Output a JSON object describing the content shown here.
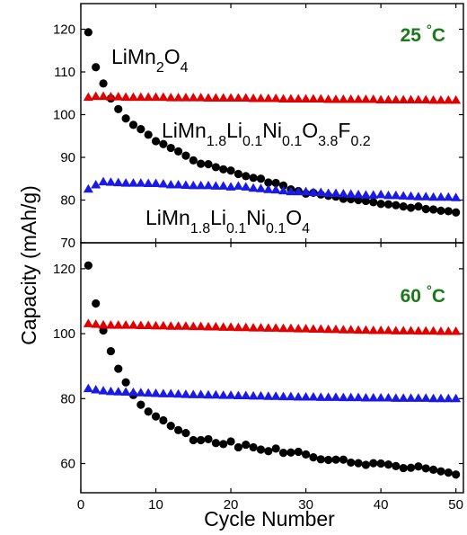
{
  "chart_data": {
    "type": "scatter",
    "xlabel": "Cycle Number",
    "ylabel": "Capacity (mAh/g)",
    "xlim": [
      0,
      51
    ],
    "x_ticks": [
      0,
      10,
      20,
      30,
      40,
      50
    ],
    "x_tick_labels": [
      "0",
      "10",
      "20",
      "30",
      "40",
      "50"
    ],
    "grid": false,
    "legend": "none",
    "colors": {
      "black": "#000000",
      "red": "#e00000",
      "blue": "#1a1ae6",
      "green": "#1a7a1a"
    },
    "panels": [
      {
        "id": "top",
        "temperature_label": "25 °C",
        "ylim": [
          70,
          126
        ],
        "y_ticks": [
          70,
          80,
          90,
          100,
          110,
          120
        ],
        "y_tick_labels": [
          "70",
          "80",
          "90",
          "100",
          "110",
          "120"
        ],
        "annotations": [
          {
            "segments": [
              {
                "t": "LiMn"
              },
              {
                "t": "2",
                "sub": true
              },
              {
                "t": "O"
              },
              {
                "t": "4",
                "sub": true
              }
            ],
            "color": "black"
          },
          {
            "segments": [
              {
                "t": "LiMn"
              },
              {
                "t": "1.8",
                "sub": true
              },
              {
                "t": "Li"
              },
              {
                "t": "0.1",
                "sub": true
              },
              {
                "t": "Ni"
              },
              {
                "t": "0.1",
                "sub": true
              },
              {
                "t": "O"
              },
              {
                "t": "3.8",
                "sub": true
              },
              {
                "t": "F"
              },
              {
                "t": "0.2",
                "sub": true
              }
            ],
            "color": "red"
          },
          {
            "segments": [
              {
                "t": "LiMn"
              },
              {
                "t": "1.8",
                "sub": true
              },
              {
                "t": "Li"
              },
              {
                "t": "0.1",
                "sub": true
              },
              {
                "t": "Ni"
              },
              {
                "t": "0.1",
                "sub": true
              },
              {
                "t": "O"
              },
              {
                "t": "4",
                "sub": true
              }
            ],
            "color": "blue"
          }
        ],
        "series": [
          {
            "name": "LiMn2O4",
            "marker": "circle",
            "color": "black",
            "x": [
              1,
              2,
              3,
              4,
              5,
              6,
              7,
              8,
              9,
              10,
              11,
              12,
              13,
              14,
              15,
              16,
              17,
              18,
              19,
              20,
              21,
              22,
              23,
              24,
              25,
              26,
              27,
              28,
              29,
              30,
              31,
              32,
              33,
              34,
              35,
              36,
              37,
              38,
              39,
              40,
              41,
              42,
              43,
              44,
              45,
              46,
              47,
              48,
              49,
              50
            ],
            "y": [
              119.3,
              111.1,
              107.3,
              103.8,
              101.3,
              99.1,
              97.6,
              96.6,
              95.3,
              93.8,
              93.1,
              92.2,
              91.4,
              90.4,
              89.3,
              88.5,
              88.4,
              87.7,
              87.2,
              86.9,
              86.1,
              85.6,
              85.2,
              85.0,
              84.1,
              84.0,
              83.4,
              82.5,
              82.1,
              81.5,
              81.7,
              81.3,
              81.0,
              80.8,
              80.3,
              80.2,
              80.0,
              79.8,
              79.5,
              79.1,
              79.0,
              78.8,
              78.5,
              78.2,
              78.5,
              77.9,
              77.8,
              77.5,
              77.4,
              77.1
            ]
          },
          {
            "name": "LiMn1.8Li0.1Ni0.1O3.8F0.2",
            "marker": "triangle",
            "color": "red",
            "x": [
              1,
              2,
              3,
              4,
              5,
              6,
              7,
              8,
              9,
              10,
              11,
              12,
              13,
              14,
              15,
              16,
              17,
              18,
              19,
              20,
              21,
              22,
              23,
              24,
              25,
              26,
              27,
              28,
              29,
              30,
              31,
              32,
              33,
              34,
              35,
              36,
              37,
              38,
              39,
              40,
              41,
              42,
              43,
              44,
              45,
              46,
              47,
              48,
              49,
              50
            ],
            "y": [
              104.0,
              104.2,
              104.2,
              104.1,
              104.1,
              104.0,
              104.0,
              104.0,
              104.0,
              104.0,
              104.0,
              103.9,
              103.9,
              103.9,
              103.9,
              103.9,
              103.8,
              103.8,
              103.8,
              103.8,
              103.8,
              103.8,
              103.7,
              103.7,
              103.7,
              103.7,
              103.6,
              103.6,
              103.6,
              103.6,
              103.6,
              103.6,
              103.5,
              103.5,
              103.5,
              103.5,
              103.5,
              103.5,
              103.5,
              103.4,
              103.4,
              103.4,
              103.4,
              103.4,
              103.4,
              103.4,
              103.3,
              103.3,
              103.3,
              103.3
            ]
          },
          {
            "name": "LiMn1.8Li0.1Ni0.1O4",
            "marker": "triangle",
            "color": "blue",
            "x": [
              1,
              2,
              3,
              4,
              5,
              6,
              7,
              8,
              9,
              10,
              11,
              12,
              13,
              14,
              15,
              16,
              17,
              18,
              19,
              20,
              21,
              22,
              23,
              24,
              25,
              26,
              27,
              28,
              29,
              30,
              31,
              32,
              33,
              34,
              35,
              36,
              37,
              38,
              39,
              40,
              41,
              42,
              43,
              44,
              45,
              46,
              47,
              48,
              49,
              50
            ],
            "y": [
              82.5,
              83.5,
              84.2,
              84.1,
              84.0,
              83.9,
              83.9,
              83.9,
              83.8,
              83.8,
              83.7,
              83.5,
              83.5,
              83.4,
              83.3,
              83.3,
              83.3,
              83.2,
              83.2,
              83.0,
              83.2,
              83.0,
              82.7,
              82.6,
              82.4,
              82.3,
              82.1,
              81.9,
              81.9,
              81.9,
              81.7,
              81.7,
              81.5,
              81.5,
              81.4,
              81.3,
              81.2,
              81.1,
              81.1,
              81.2,
              81.0,
              81.0,
              80.9,
              80.8,
              80.7,
              80.7,
              80.6,
              80.6,
              80.6,
              80.5
            ]
          }
        ]
      },
      {
        "id": "bottom",
        "temperature_label": "60 °C",
        "ylim": [
          51,
          128
        ],
        "y_ticks": [
          60,
          80,
          100,
          120
        ],
        "y_tick_labels": [
          "60",
          "80",
          "100",
          "120"
        ],
        "annotations": [],
        "series": [
          {
            "name": "LiMn2O4",
            "marker": "circle",
            "color": "black",
            "x": [
              1,
              2,
              3,
              4,
              5,
              6,
              7,
              8,
              9,
              10,
              11,
              12,
              13,
              14,
              15,
              16,
              17,
              18,
              19,
              20,
              21,
              22,
              23,
              24,
              25,
              26,
              27,
              28,
              29,
              30,
              31,
              32,
              33,
              34,
              35,
              36,
              37,
              38,
              39,
              40,
              41,
              42,
              43,
              44,
              45,
              46,
              47,
              48,
              49,
              50
            ],
            "y": [
              121.0,
              109.3,
              101.0,
              94.6,
              89.2,
              85.0,
              81.1,
              78.1,
              76.0,
              74.5,
              73.3,
              71.6,
              70.3,
              69.4,
              67.2,
              67.2,
              67.5,
              66.3,
              66.0,
              66.8,
              65.0,
              65.8,
              65.0,
              64.3,
              63.8,
              64.6,
              63.3,
              63.4,
              63.6,
              62.8,
              61.9,
              61.3,
              61.1,
              61.2,
              61.2,
              60.3,
              60.1,
              59.6,
              60.1,
              60.0,
              59.7,
              59.2,
              58.6,
              58.7,
              59.1,
              58.5,
              58.1,
              57.6,
              57.2,
              56.6
            ]
          },
          {
            "name": "LiMn1.8Li0.1Ni0.1O3.8F0.2",
            "marker": "triangle",
            "color": "red",
            "x": [
              1,
              2,
              3,
              4,
              5,
              6,
              7,
              8,
              9,
              10,
              11,
              12,
              13,
              14,
              15,
              16,
              17,
              18,
              19,
              20,
              21,
              22,
              23,
              24,
              25,
              26,
              27,
              28,
              29,
              30,
              31,
              32,
              33,
              34,
              35,
              36,
              37,
              38,
              39,
              40,
              41,
              42,
              43,
              44,
              45,
              46,
              47,
              48,
              49,
              50
            ],
            "y": [
              103.0,
              102.8,
              102.6,
              102.5,
              102.5,
              102.5,
              102.5,
              102.4,
              102.4,
              102.3,
              102.3,
              102.2,
              102.2,
              102.2,
              102.1,
              102.1,
              102.0,
              102.0,
              101.9,
              101.9,
              101.8,
              101.8,
              101.7,
              101.7,
              101.6,
              101.6,
              101.5,
              101.5,
              101.4,
              101.4,
              101.3,
              101.3,
              101.2,
              101.2,
              101.1,
              101.1,
              101.0,
              101.0,
              100.9,
              100.9,
              100.9,
              100.8,
              100.8,
              100.8,
              100.7,
              100.7,
              100.7,
              100.6,
              100.6,
              100.6
            ]
          },
          {
            "name": "LiMn1.8Li0.1Ni0.1O4",
            "marker": "triangle",
            "color": "blue",
            "x": [
              1,
              2,
              3,
              4,
              5,
              6,
              7,
              8,
              9,
              10,
              11,
              12,
              13,
              14,
              15,
              16,
              17,
              18,
              19,
              20,
              21,
              22,
              23,
              24,
              25,
              26,
              27,
              28,
              29,
              30,
              31,
              32,
              33,
              34,
              35,
              36,
              37,
              38,
              39,
              40,
              41,
              42,
              43,
              44,
              45,
              46,
              47,
              48,
              49,
              50
            ],
            "y": [
              83.0,
              82.6,
              82.3,
              82.1,
              82.0,
              81.9,
              81.8,
              81.7,
              81.6,
              81.5,
              81.4,
              81.4,
              81.3,
              81.2,
              81.1,
              81.1,
              81.0,
              81.0,
              80.9,
              80.9,
              80.8,
              80.8,
              80.7,
              80.7,
              80.6,
              80.6,
              80.5,
              80.5,
              80.4,
              80.4,
              80.4,
              80.3,
              80.3,
              80.3,
              80.2,
              80.2,
              80.2,
              80.1,
              80.1,
              80.1,
              80.1,
              80.0,
              80.0,
              80.0,
              80.0,
              80.0,
              79.9,
              79.9,
              79.9,
              79.9
            ]
          }
        ]
      }
    ]
  }
}
